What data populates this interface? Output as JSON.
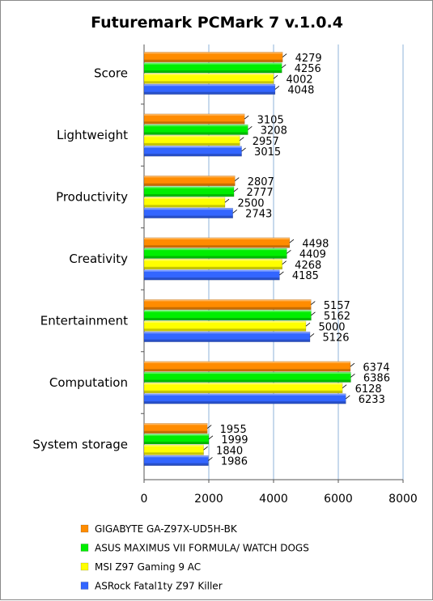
{
  "chart_data": {
    "type": "bar",
    "orientation": "horizontal",
    "title": "Futuremark PCMark 7 v.1.0.4",
    "categories": [
      "Score",
      "Lightweight",
      "Productivity",
      "Creativity",
      "Entertainment",
      "Computation",
      "System storage"
    ],
    "series": [
      {
        "name": "GIGABYTE GA-Z97X-UD5H-BK",
        "color": "#ff8c00",
        "values": [
          4279,
          3105,
          2807,
          4498,
          5157,
          6374,
          1955
        ]
      },
      {
        "name": "ASUS MAXIMUS VII FORMULA/ WATCH DOGS",
        "color": "#00ee00",
        "values": [
          4256,
          3208,
          2777,
          4409,
          5162,
          6386,
          1999
        ]
      },
      {
        "name": "MSI Z97 Gaming 9 AC",
        "color": "#ffff00",
        "values": [
          4002,
          2957,
          2500,
          4268,
          5000,
          6128,
          1840
        ]
      },
      {
        "name": "ASRock Fatal1ty Z97 Killer",
        "color": "#3366ff",
        "values": [
          4048,
          3015,
          2743,
          4185,
          5126,
          6233,
          1986
        ]
      }
    ],
    "xlim": [
      0,
      8000
    ],
    "xticks": [
      0,
      2000,
      4000,
      6000,
      8000
    ],
    "xlabel": "",
    "ylabel": "",
    "grid": "vertical",
    "legend": "bottom"
  }
}
